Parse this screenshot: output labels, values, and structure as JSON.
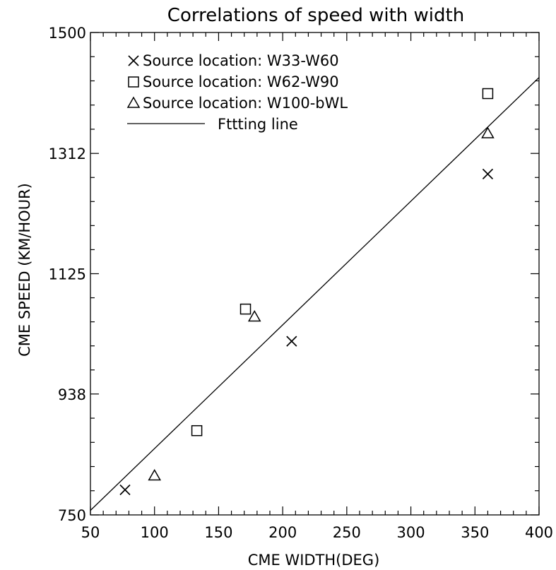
{
  "chart_data": {
    "type": "scatter",
    "title": "Correlations of speed with width",
    "xlabel": "CME WIDTH(DEG)",
    "ylabel": "CME SPEED (KM/HOUR)",
    "xlim": [
      50,
      400
    ],
    "ylim": [
      750,
      1500
    ],
    "x_ticks": [
      50,
      100,
      150,
      200,
      250,
      300,
      350,
      400
    ],
    "x_tick_labels": [
      "50",
      "100",
      "150",
      "200",
      "250",
      "300",
      "350",
      "400"
    ],
    "y_ticks": [
      750,
      938,
      1125,
      1312,
      1500
    ],
    "y_tick_labels": [
      "750",
      "938",
      "1125",
      "1312",
      "1500"
    ],
    "grid": false,
    "legend_position": "top-left",
    "series": [
      {
        "name": "Source location: W33-W60",
        "marker": "x",
        "points": [
          {
            "x": 77,
            "y": 789
          },
          {
            "x": 207,
            "y": 1020
          },
          {
            "x": 360,
            "y": 1280
          }
        ]
      },
      {
        "name": "Source location: W62-W90",
        "marker": "square",
        "points": [
          {
            "x": 133,
            "y": 881
          },
          {
            "x": 171,
            "y": 1070
          },
          {
            "x": 360,
            "y": 1405
          }
        ]
      },
      {
        "name": "Source location: W100-bWL",
        "marker": "triangle",
        "points": [
          {
            "x": 100,
            "y": 811
          },
          {
            "x": 178,
            "y": 1058
          },
          {
            "x": 360,
            "y": 1343
          }
        ]
      },
      {
        "name": "Fttting line",
        "marker": "line",
        "points": [
          {
            "x": 50,
            "y": 757
          },
          {
            "x": 400,
            "y": 1430
          }
        ]
      }
    ]
  }
}
